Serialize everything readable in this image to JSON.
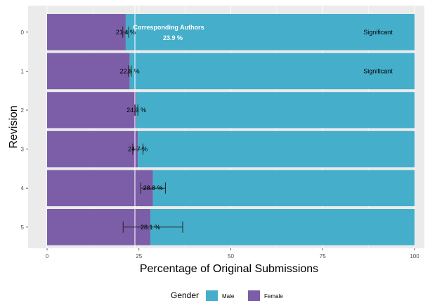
{
  "chart_data": {
    "type": "bar",
    "orientation": "horizontal",
    "stacked": true,
    "categories": [
      "0",
      "1",
      "2",
      "3",
      "4",
      "5"
    ],
    "series": [
      {
        "name": "Female",
        "color": "#7B5EA7",
        "values": [
          21.4,
          22.5,
          24.3,
          24.7,
          28.8,
          28.1
        ]
      },
      {
        "name": "Male",
        "color": "#45AECB",
        "values": [
          78.6,
          77.5,
          75.7,
          75.3,
          71.2,
          71.9
        ]
      }
    ],
    "data_labels": [
      "21.4 %",
      "22.5 %",
      "24.3 %",
      "24.7 %",
      "28.8 %",
      "28.1 %"
    ],
    "error_bars": [
      {
        "low": 20.6,
        "high": 22.2
      },
      {
        "low": 22.1,
        "high": 22.9
      },
      {
        "low": 23.9,
        "high": 24.7
      },
      {
        "low": 23.3,
        "high": 26.1
      },
      {
        "low": 25.5,
        "high": 32.2
      },
      {
        "low": 20.7,
        "high": 36.9
      }
    ],
    "significance": [
      "Significant",
      "Significant",
      "",
      "",
      "",
      ""
    ],
    "reference_line": {
      "value": 23.9,
      "label_title": "Corresponding Authors",
      "label_value": "23.9 %"
    },
    "xlabel": "Percentage of Original Submissions",
    "ylabel": "Revision",
    "xlim": [
      0,
      100
    ],
    "xticks": [
      0,
      25,
      50,
      75,
      100
    ],
    "grid": true,
    "legend": {
      "title": "Gender",
      "position": "bottom",
      "items": [
        {
          "label": "Male",
          "color": "#45AECB"
        },
        {
          "label": "Female",
          "color": "#7B5EA7"
        }
      ]
    }
  }
}
